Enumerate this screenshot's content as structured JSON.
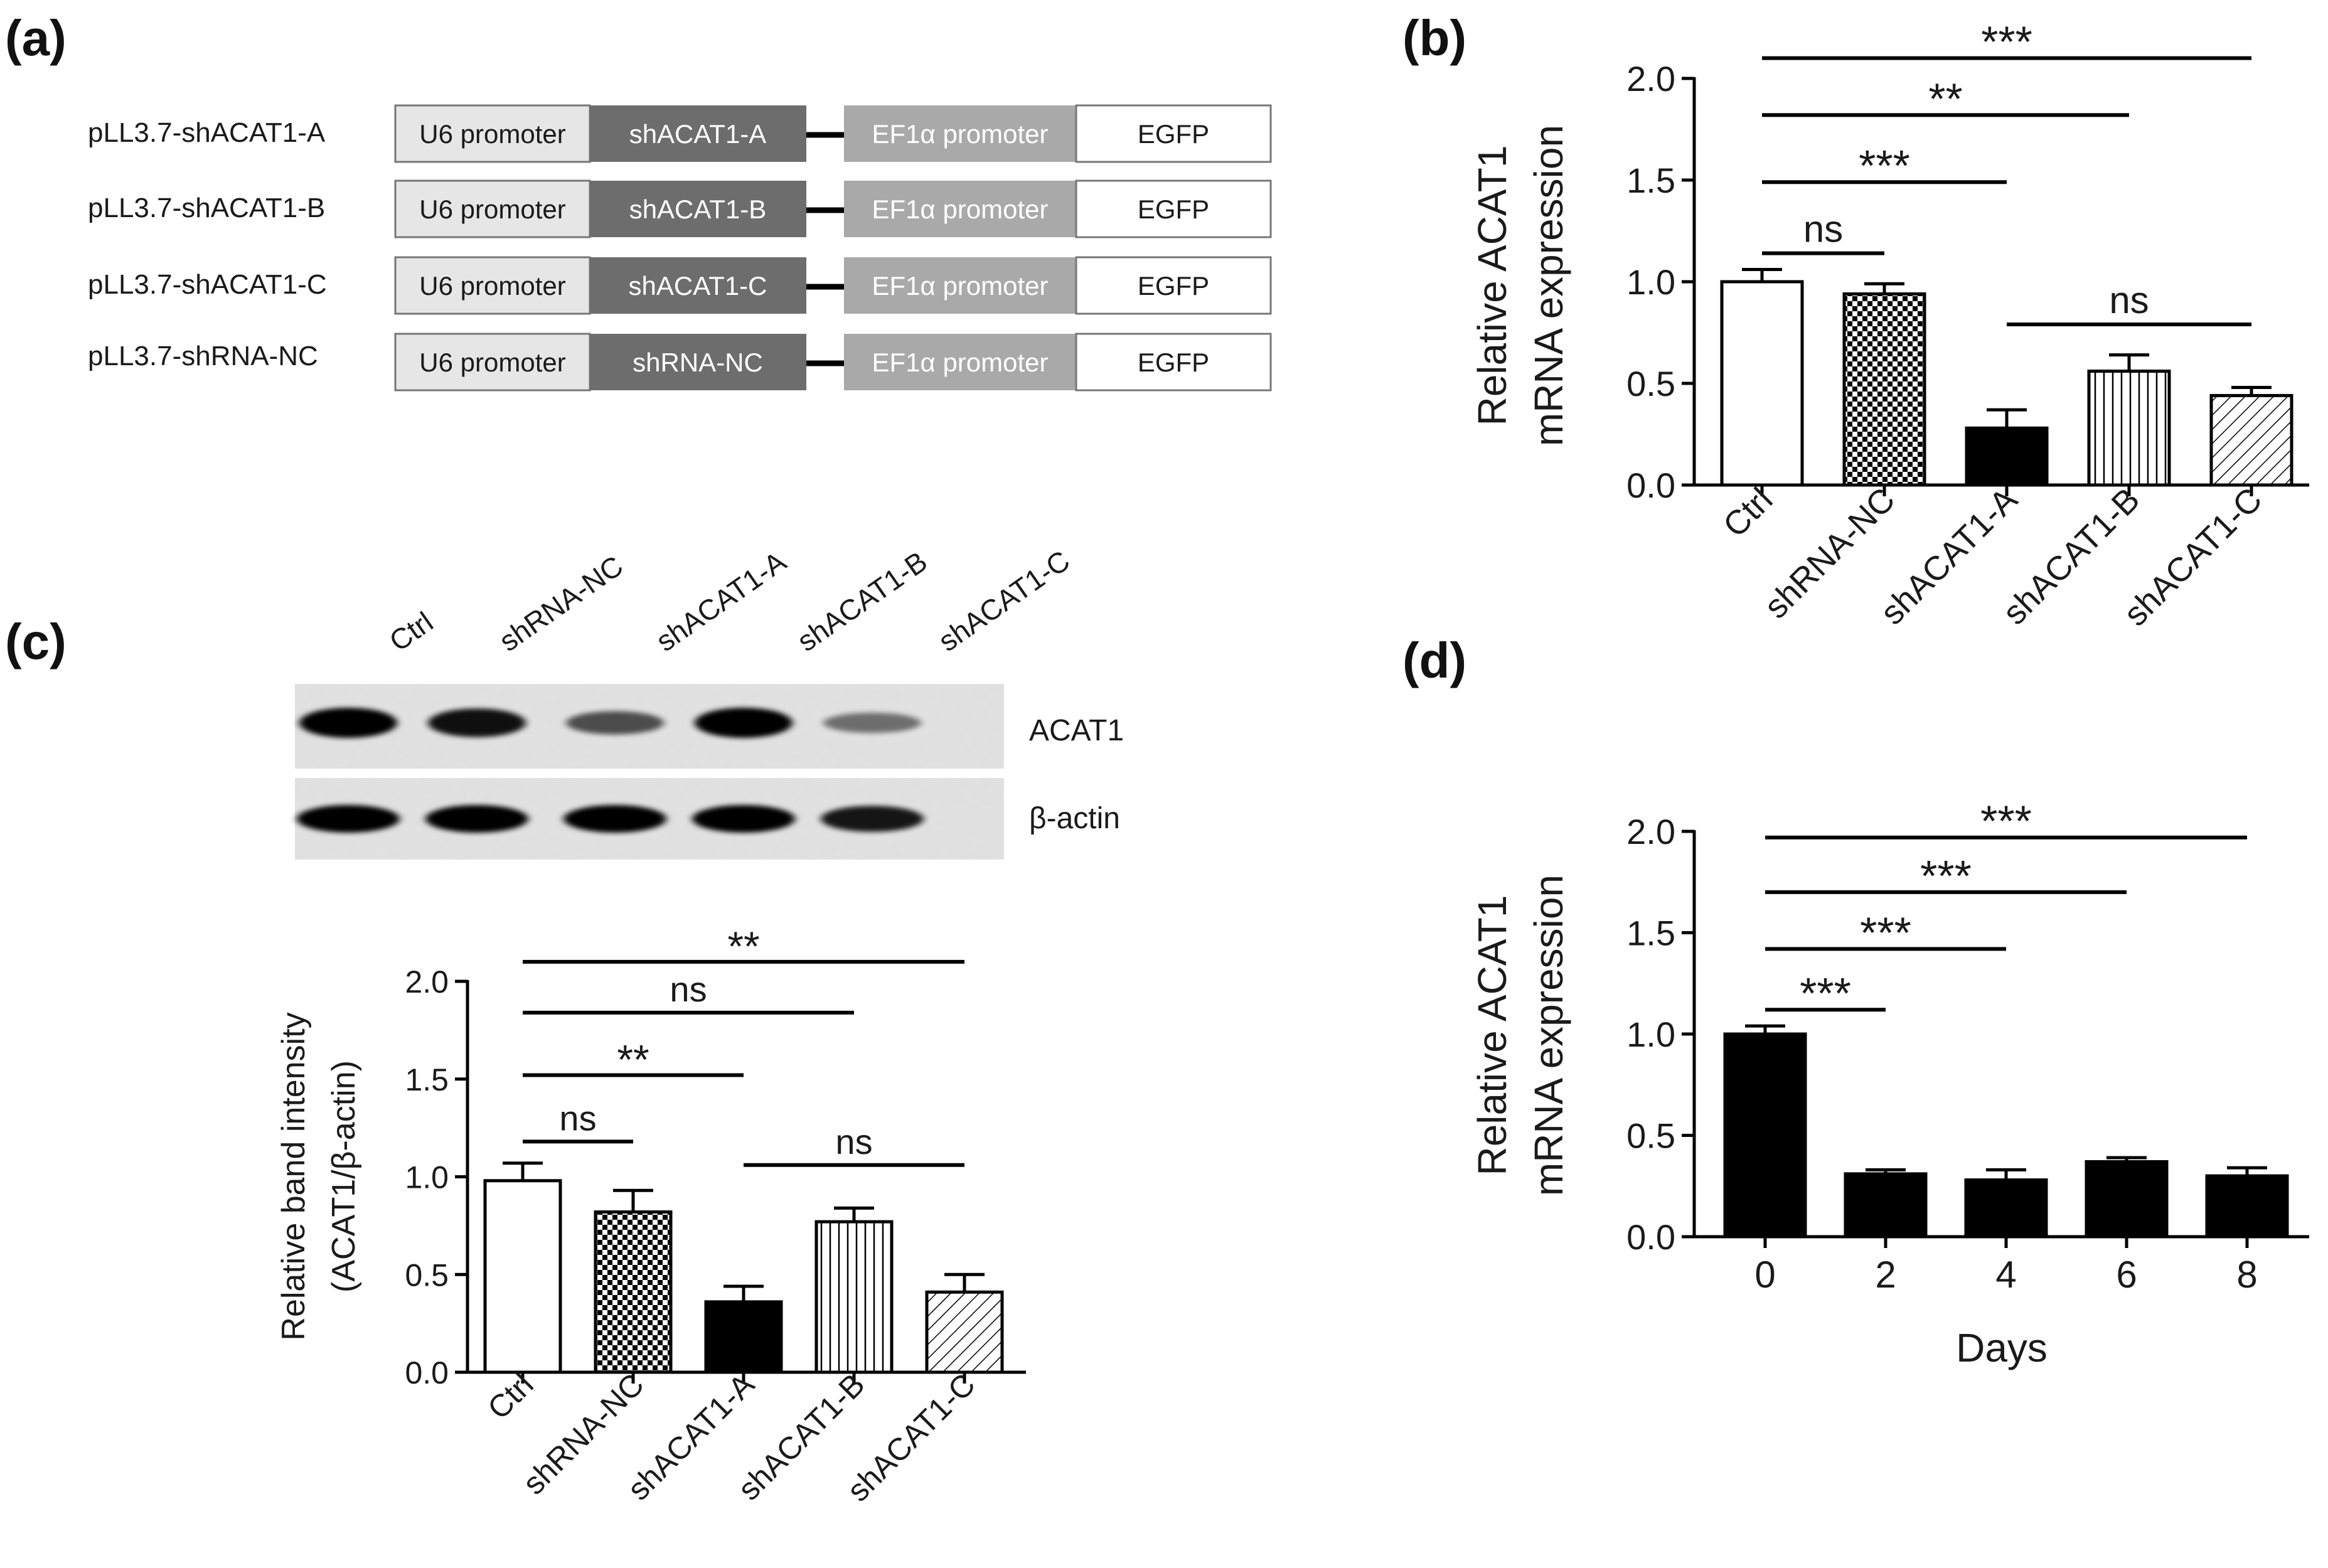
{
  "panels": {
    "a": "(a)",
    "b": "(b)",
    "c": "(c)",
    "d": "(d)"
  },
  "constructs": [
    {
      "name": "pLL3.7-shACAT1-A",
      "segments": [
        "U6 promoter",
        "shACAT1-A",
        "EF1α promoter",
        "EGFP"
      ]
    },
    {
      "name": "pLL3.7-shACAT1-B",
      "segments": [
        "U6 promoter",
        "shACAT1-B",
        "EF1α promoter",
        "EGFP"
      ]
    },
    {
      "name": "pLL3.7-shACAT1-C",
      "segments": [
        "U6 promoter",
        "shACAT1-C",
        "EF1α promoter",
        "EGFP"
      ]
    },
    {
      "name": "pLL3.7-shRNA-NC",
      "segments": [
        "U6 promoter",
        "shRNA-NC",
        "EF1α promoter",
        "EGFP"
      ]
    }
  ],
  "blot": {
    "lanes": [
      "Ctrl",
      "shRNA-NC",
      "shACAT1-A",
      "shACAT1-B",
      "shACAT1-C"
    ],
    "rows": [
      "ACAT1",
      "β-actin"
    ],
    "acat1_band_intensity": [
      1.0,
      0.9,
      0.55,
      1.0,
      0.35
    ],
    "actin_band_intensity": [
      1.0,
      1.0,
      1.0,
      1.0,
      0.85
    ]
  },
  "colors": {
    "bar_black": "#000000",
    "bar_white": "#ffffff",
    "box_light": "#e6e6e6",
    "box_dark": "#6d6d6d",
    "box_mid": "#a9a9a9"
  },
  "chart_data": [
    {
      "id": "b",
      "type": "bar",
      "title": "",
      "ylabel_line1": "Relative ACAT1",
      "ylabel_line2": "mRNA expression",
      "xlabel": "",
      "categories": [
        "Ctrl",
        "shRNA-NC",
        "shACAT1-A",
        "shACAT1-B",
        "shACAT1-C"
      ],
      "values": [
        1.0,
        0.94,
        0.28,
        0.56,
        0.44
      ],
      "errors": [
        0.06,
        0.05,
        0.09,
        0.08,
        0.04
      ],
      "fills": [
        "white",
        "checker",
        "black",
        "vertical",
        "diagonal"
      ],
      "ylim": [
        0,
        2.0
      ],
      "yticks": [
        "0.0",
        "0.5",
        "1.0",
        "1.5",
        "2.0"
      ],
      "yticks_values": [
        0,
        0.5,
        1.0,
        1.5,
        2.0
      ],
      "significance": [
        {
          "from": 0,
          "to": 4,
          "label": "***",
          "y": 2.1
        },
        {
          "from": 0,
          "to": 3,
          "label": "**",
          "y": 1.82
        },
        {
          "from": 0,
          "to": 2,
          "label": "***",
          "y": 1.49
        },
        {
          "from": 0,
          "to": 1,
          "label": "ns",
          "y": 1.14
        },
        {
          "from": 2,
          "to": 4,
          "label": "ns",
          "y": 0.79
        }
      ]
    },
    {
      "id": "c",
      "type": "bar",
      "title": "",
      "ylabel_line1": "Relative band intensity",
      "ylabel_line2": "(ACAT1/β-actin)",
      "xlabel": "",
      "categories": [
        "Ctrl",
        "shRNA-NC",
        "shACAT1-A",
        "shACAT1-B",
        "shACAT1-C"
      ],
      "values": [
        0.98,
        0.82,
        0.36,
        0.77,
        0.41
      ],
      "errors": [
        0.09,
        0.11,
        0.08,
        0.07,
        0.09
      ],
      "fills": [
        "white",
        "checker",
        "black",
        "vertical",
        "diagonal"
      ],
      "ylim": [
        0,
        2.0
      ],
      "yticks": [
        "0.0",
        "0.5",
        "1.0",
        "1.5",
        "2.0"
      ],
      "yticks_values": [
        0,
        0.5,
        1.0,
        1.5,
        2.0
      ],
      "significance": [
        {
          "from": 0,
          "to": 4,
          "label": "**",
          "y": 2.1
        },
        {
          "from": 0,
          "to": 3,
          "label": "ns",
          "y": 1.84
        },
        {
          "from": 0,
          "to": 2,
          "label": "**",
          "y": 1.52
        },
        {
          "from": 0,
          "to": 1,
          "label": "ns",
          "y": 1.18
        },
        {
          "from": 2,
          "to": 4,
          "label": "ns",
          "y": 1.06
        }
      ]
    },
    {
      "id": "d",
      "type": "bar",
      "title": "",
      "ylabel_line1": "Relative ACAT1",
      "ylabel_line2": "mRNA expression",
      "xlabel": "Days",
      "categories": [
        "0",
        "2",
        "4",
        "6",
        "8"
      ],
      "values": [
        1.0,
        0.31,
        0.28,
        0.37,
        0.3
      ],
      "errors": [
        0.04,
        0.02,
        0.05,
        0.02,
        0.04
      ],
      "fills": [
        "black",
        "black",
        "black",
        "black",
        "black"
      ],
      "ylim": [
        0,
        2.0
      ],
      "yticks": [
        "0.0",
        "0.5",
        "1.0",
        "1.5",
        "2.0"
      ],
      "yticks_values": [
        0,
        0.5,
        1.0,
        1.5,
        2.0
      ],
      "significance": [
        {
          "from": 0,
          "to": 4,
          "label": "***",
          "y": 1.97
        },
        {
          "from": 0,
          "to": 3,
          "label": "***",
          "y": 1.7
        },
        {
          "from": 0,
          "to": 2,
          "label": "***",
          "y": 1.42
        },
        {
          "from": 0,
          "to": 1,
          "label": "***",
          "y": 1.12
        }
      ]
    }
  ]
}
